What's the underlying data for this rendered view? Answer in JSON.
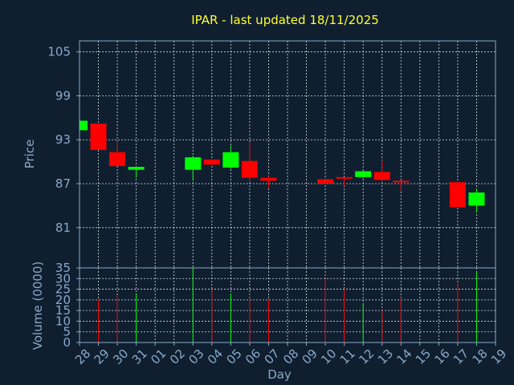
{
  "chart_data": {
    "type": "candlestick",
    "title": "IPAR - last updated 18/11/2025",
    "xlabel": "Day",
    "colors": {
      "background": "#0f1f30",
      "up": "#00ff00",
      "down": "#ff0000",
      "axis": "#8aa8c8",
      "title": "#ffff33",
      "grid": "#ffffff"
    },
    "x_ticks": [
      "28",
      "29",
      "30",
      "31",
      "01",
      "02",
      "03",
      "04",
      "05",
      "06",
      "07",
      "08",
      "09",
      "10",
      "11",
      "12",
      "13",
      "14",
      "15",
      "16",
      "17",
      "18",
      "19"
    ],
    "grid": true,
    "price_panel": {
      "ylabel": "Price",
      "ylim": [
        75.5,
        106.5
      ],
      "y_ticks": [
        105,
        99,
        93,
        87,
        81
      ],
      "candles": [
        {
          "x": "28",
          "open": 94.3,
          "close": 95.6,
          "high": 95.6,
          "low": 94.3
        },
        {
          "x": "29",
          "open": 95.2,
          "close": 91.6,
          "high": 95.2,
          "low": 91.6
        },
        {
          "x": "30",
          "open": 91.3,
          "close": 89.4,
          "high": 92.8,
          "low": 89.4
        },
        {
          "x": "31",
          "open": 88.9,
          "close": 89.3,
          "high": 89.3,
          "low": 87.8
        },
        {
          "x": "03",
          "open": 88.9,
          "close": 90.6,
          "high": 90.8,
          "low": 87.4
        },
        {
          "x": "04",
          "open": 90.3,
          "close": 89.6,
          "high": 90.3,
          "low": 89.6
        },
        {
          "x": "05",
          "open": 89.2,
          "close": 91.3,
          "high": 92.2,
          "low": 89.0
        },
        {
          "x": "06",
          "open": 90.1,
          "close": 87.8,
          "high": 92.7,
          "low": 87.3
        },
        {
          "x": "07",
          "open": 87.8,
          "close": 87.4,
          "high": 88.0,
          "low": 86.4
        },
        {
          "x": "10",
          "open": 87.6,
          "close": 87.0,
          "high": 87.6,
          "low": 86.9
        },
        {
          "x": "11",
          "open": 87.9,
          "close": 87.8,
          "high": 87.9,
          "low": 86.7
        },
        {
          "x": "12",
          "open": 87.9,
          "close": 88.7,
          "high": 88.9,
          "low": 87.8
        },
        {
          "x": "13",
          "open": 88.6,
          "close": 87.5,
          "high": 90.2,
          "low": 87.5
        },
        {
          "x": "14",
          "open": 87.4,
          "close": 87.3,
          "high": 87.4,
          "low": 85.9
        },
        {
          "x": "17",
          "open": 87.2,
          "close": 83.8,
          "high": 87.2,
          "low": 83.7
        },
        {
          "x": "18",
          "open": 84.0,
          "close": 85.8,
          "high": 86.3,
          "low": 83.1
        }
      ]
    },
    "volume_panel": {
      "ylabel": "Volume (0000)",
      "ylim": [
        0,
        35
      ],
      "y_ticks": [
        35,
        30,
        25,
        20,
        15,
        10,
        5,
        0
      ],
      "bars": [
        {
          "x": "29",
          "value": 20,
          "up": false
        },
        {
          "x": "30",
          "value": 22,
          "up": false
        },
        {
          "x": "31",
          "value": 23,
          "up": true
        },
        {
          "x": "03",
          "value": 35,
          "up": true
        },
        {
          "x": "04",
          "value": 25,
          "up": false
        },
        {
          "x": "05",
          "value": 23,
          "up": true
        },
        {
          "x": "06",
          "value": 21,
          "up": false
        },
        {
          "x": "07",
          "value": 20,
          "up": false
        },
        {
          "x": "10",
          "value": 30,
          "up": false
        },
        {
          "x": "11",
          "value": 25,
          "up": false
        },
        {
          "x": "12",
          "value": 18,
          "up": true
        },
        {
          "x": "13",
          "value": 15,
          "up": false
        },
        {
          "x": "14",
          "value": 21,
          "up": false
        },
        {
          "x": "17",
          "value": 28,
          "up": false
        },
        {
          "x": "18",
          "value": 33,
          "up": true
        }
      ]
    }
  }
}
